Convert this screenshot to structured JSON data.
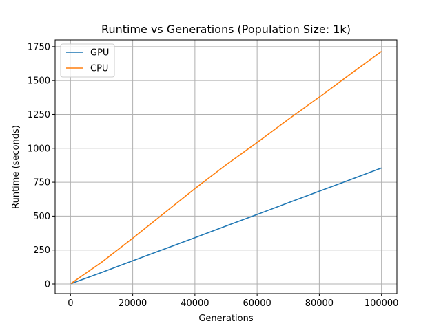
{
  "chart_data": {
    "type": "line",
    "title": "Runtime vs Generations (Population Size: 1k)",
    "xlabel": "Generations",
    "ylabel": "Runtime (seconds)",
    "xlim": [
      -4950,
      104950
    ],
    "ylim": [
      -71,
      1800
    ],
    "xticks": [
      0,
      20000,
      40000,
      60000,
      80000,
      100000
    ],
    "yticks": [
      0,
      250,
      500,
      750,
      1000,
      1250,
      1500,
      1750
    ],
    "grid": true,
    "legend_position": "upper-left",
    "series": [
      {
        "name": "GPU",
        "color": "#1f77b4",
        "x": [
          100,
          10000,
          20000,
          30000,
          40000,
          50000,
          60000,
          70000,
          80000,
          90000,
          100000
        ],
        "y": [
          2,
          85,
          171,
          256,
          341,
          427,
          512,
          598,
          684,
          769,
          855
        ]
      },
      {
        "name": "CPU",
        "color": "#ff7f0e",
        "x": [
          100,
          10000,
          20000,
          30000,
          40000,
          50000,
          60000,
          70000,
          80000,
          90000,
          100000
        ],
        "y": [
          3,
          160,
          337,
          520,
          703,
          878,
          1043,
          1213,
          1378,
          1548,
          1715
        ]
      }
    ]
  }
}
